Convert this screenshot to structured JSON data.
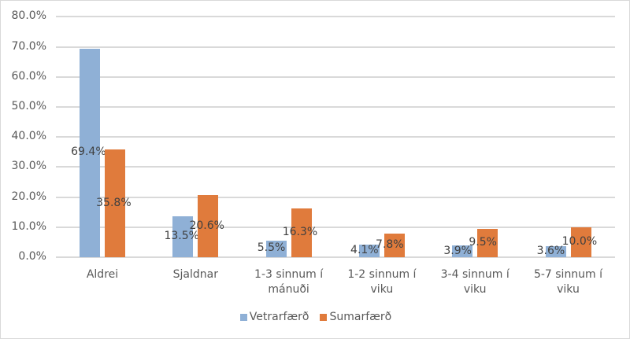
{
  "chart_data": {
    "type": "bar",
    "title": "",
    "xlabel": "",
    "ylabel": "",
    "ylim": [
      0,
      80
    ],
    "yticks": [
      "0.0%",
      "10.0%",
      "20.0%",
      "30.0%",
      "40.0%",
      "50.0%",
      "60.0%",
      "70.0%",
      "80.0%"
    ],
    "grid": true,
    "legend_position": "bottom",
    "categories": [
      "Aldrei",
      "Sjaldnar",
      "1-3 sinnum í mánuði",
      "1-2 sinnum í viku",
      "3-4 sinnum í viku",
      "5-7 sinnum í viku"
    ],
    "series": [
      {
        "name": "Vetrarfærð",
        "color": "#8fb0d6",
        "values": [
          69.4,
          13.5,
          5.5,
          4.1,
          3.9,
          3.6
        ],
        "labels": [
          "69.4%",
          "13.5%",
          "5.5%",
          "4.1%",
          "3.9%",
          "3.6%"
        ]
      },
      {
        "name": "Sumarfærð",
        "color": "#e07b3c",
        "values": [
          35.8,
          20.6,
          16.3,
          7.8,
          9.5,
          10.0
        ],
        "labels": [
          "35.8%",
          "20.6%",
          "16.3%",
          "7.8%",
          "9.5%",
          "10.0%"
        ]
      }
    ]
  },
  "xaxis": {
    "labels": [
      [
        "Aldrei"
      ],
      [
        "Sjaldnar"
      ],
      [
        "1-3 sinnum í",
        "mánuði"
      ],
      [
        "1-2 sinnum í viku"
      ],
      [
        "3-4 sinnum í viku"
      ],
      [
        "5-7 sinnum í viku"
      ]
    ]
  },
  "legend": {
    "items": [
      {
        "label": "Vetrarfærð",
        "color": "#8fb0d6"
      },
      {
        "label": "Sumarfærð",
        "color": "#e07b3c"
      }
    ]
  }
}
